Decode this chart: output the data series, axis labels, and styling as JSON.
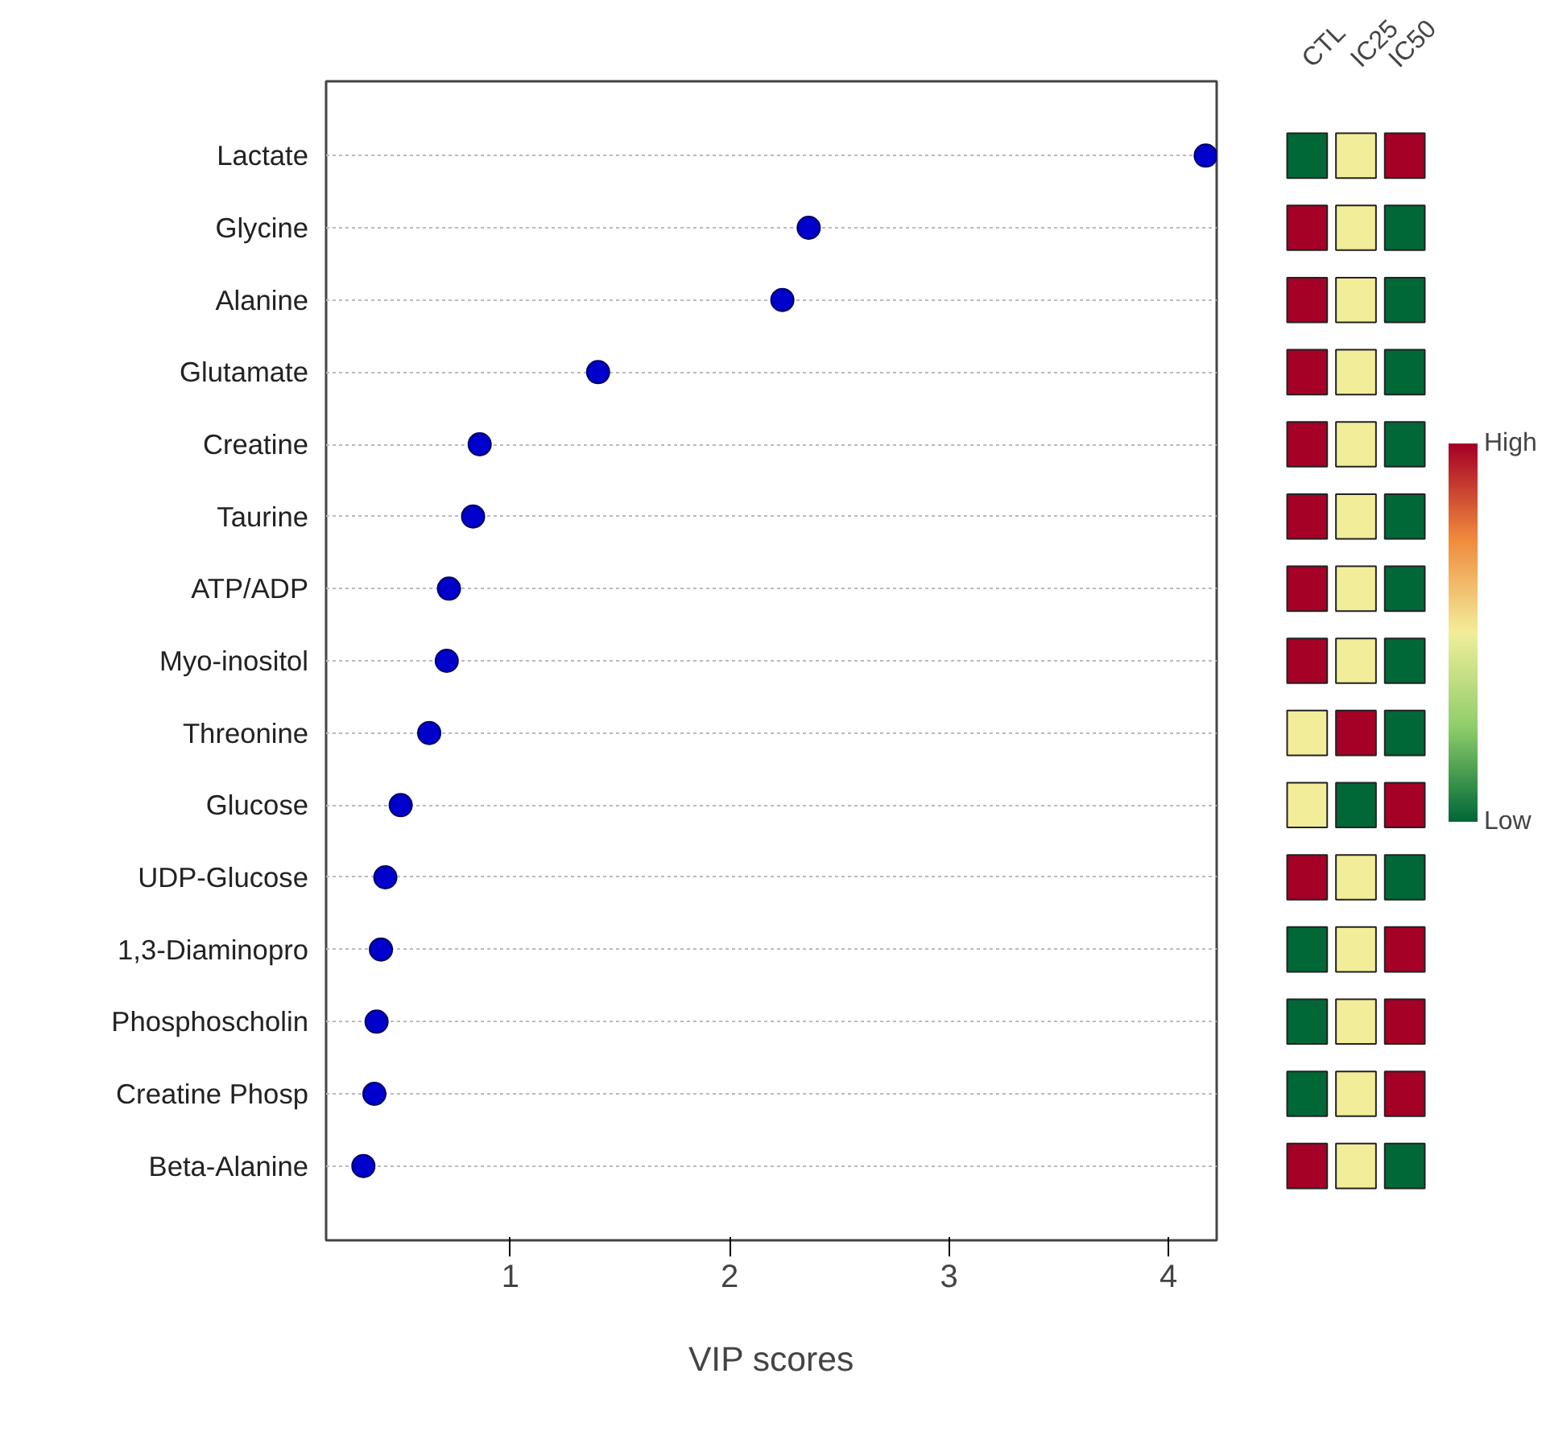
{
  "chart_data": [
    {
      "type": "scatter",
      "xlabel": "VIP scores",
      "categories": [
        "Lactate",
        "Glycine",
        "Alanine",
        "Glutamate",
        "Creatine",
        "Taurine",
        "ATP/ADP",
        "Myo-inositol",
        "Threonine",
        "Glucose",
        "UDP-Glucose",
        "1,3-Diaminopro",
        "Phosphoscholin",
        "Creatine Phosp",
        "Beta-Alanine"
      ],
      "values": [
        4.17,
        2.36,
        2.24,
        1.4,
        0.86,
        0.83,
        0.72,
        0.71,
        0.63,
        0.5,
        0.43,
        0.41,
        0.39,
        0.38,
        0.33
      ],
      "orientation": "horizontal",
      "color": "#0000cc",
      "marker": "circle",
      "xlim": [
        0.16,
        4.22
      ],
      "xticks": [
        1,
        2,
        3,
        4
      ],
      "grid": "y"
    },
    {
      "type": "heatmap",
      "categories": [
        "CTL",
        "IC25",
        "IC50"
      ],
      "y_categories": [
        null,
        null,
        null,
        null,
        null,
        null,
        null,
        null,
        null,
        null,
        null,
        null,
        null,
        null,
        null
      ],
      "cells": [
        [
          0,
          0.5,
          1
        ],
        [
          1,
          0.5,
          0
        ],
        [
          1,
          0.5,
          0
        ],
        [
          1,
          0.5,
          0
        ],
        [
          1,
          0.5,
          0
        ],
        [
          1,
          0.5,
          0
        ],
        [
          1,
          0.5,
          0
        ],
        [
          1,
          0.5,
          0
        ],
        [
          0.5,
          1,
          0
        ],
        [
          0.5,
          0,
          1
        ],
        [
          1,
          0.5,
          0
        ],
        [
          0,
          0.5,
          1
        ],
        [
          0,
          0.5,
          1
        ],
        [
          0,
          0.5,
          1
        ],
        [
          1,
          0.5,
          0
        ]
      ],
      "clim": [
        0,
        1
      ],
      "cticks": [
        {
          "value": 0,
          "label": "Low"
        },
        {
          "value": 1,
          "label": "High"
        }
      ],
      "tick_labels": "x"
    }
  ]
}
